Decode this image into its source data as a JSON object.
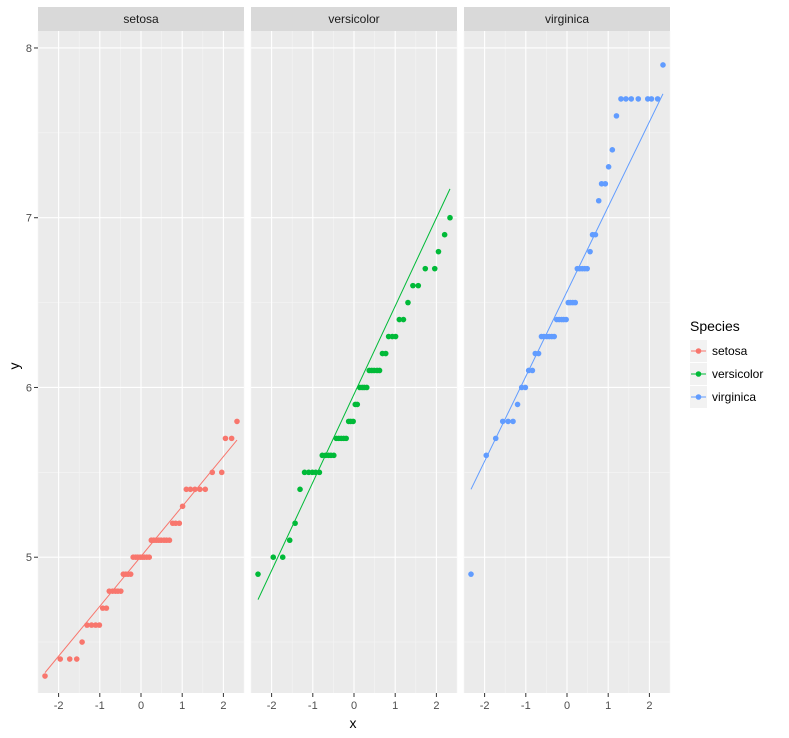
{
  "chart_data": {
    "type": "scatter",
    "facet_by": "Species",
    "xlabel": "x",
    "ylabel": "y",
    "xlim": [
      -2.5,
      2.5
    ],
    "ylim": [
      4.2,
      8.1
    ],
    "x_ticks": [
      "-2",
      "-1",
      "0",
      "1",
      "2"
    ],
    "y_ticks": [
      "5",
      "6",
      "7",
      "8"
    ],
    "x_tick_values": [
      -2,
      -1,
      0,
      1,
      2
    ],
    "y_tick_values": [
      5,
      6,
      7,
      8
    ],
    "grid": true,
    "legend": {
      "title": "Species",
      "placement": "right",
      "entries": [
        "setosa",
        "versicolor",
        "virginica"
      ]
    },
    "panels": [
      {
        "name": "setosa",
        "color": "#F8766D",
        "line": [
          [
            -2.33,
            4.32
          ],
          [
            2.33,
            5.69
          ]
        ],
        "points": [
          [
            -2.33,
            4.3
          ],
          [
            -1.96,
            4.4
          ],
          [
            -1.73,
            4.4
          ],
          [
            -1.56,
            4.4
          ],
          [
            -1.43,
            4.5
          ],
          [
            -1.31,
            4.6
          ],
          [
            -1.2,
            4.6
          ],
          [
            -1.1,
            4.6
          ],
          [
            -1.01,
            4.6
          ],
          [
            -0.93,
            4.7
          ],
          [
            -0.84,
            4.7
          ],
          [
            -0.77,
            4.8
          ],
          [
            -0.69,
            4.8
          ],
          [
            -0.62,
            4.8
          ],
          [
            -0.56,
            4.8
          ],
          [
            -0.49,
            4.8
          ],
          [
            -0.43,
            4.9
          ],
          [
            -0.37,
            4.9
          ],
          [
            -0.31,
            4.9
          ],
          [
            -0.25,
            4.9
          ],
          [
            -0.19,
            5.0
          ],
          [
            -0.13,
            5.0
          ],
          [
            -0.08,
            5.0
          ],
          [
            -0.02,
            5.0
          ],
          [
            0.03,
            5.0
          ],
          [
            0.08,
            5.0
          ],
          [
            0.14,
            5.0
          ],
          [
            0.2,
            5.0
          ],
          [
            0.25,
            5.1
          ],
          [
            0.31,
            5.1
          ],
          [
            0.37,
            5.1
          ],
          [
            0.43,
            5.1
          ],
          [
            0.49,
            5.1
          ],
          [
            0.56,
            5.1
          ],
          [
            0.62,
            5.1
          ],
          [
            0.69,
            5.1
          ],
          [
            0.77,
            5.2
          ],
          [
            0.84,
            5.2
          ],
          [
            0.93,
            5.2
          ],
          [
            1.01,
            5.3
          ],
          [
            1.1,
            5.4
          ],
          [
            1.2,
            5.4
          ],
          [
            1.31,
            5.4
          ],
          [
            1.43,
            5.4
          ],
          [
            1.56,
            5.4
          ],
          [
            1.73,
            5.5
          ],
          [
            1.96,
            5.5
          ],
          [
            2.05,
            5.7
          ],
          [
            2.2,
            5.7
          ],
          [
            2.33,
            5.8
          ]
        ]
      },
      {
        "name": "versicolor",
        "color": "#00BA38",
        "line": [
          [
            -2.33,
            4.75
          ],
          [
            2.33,
            7.17
          ]
        ],
        "points": [
          [
            -2.33,
            4.9
          ],
          [
            -1.96,
            5.0
          ],
          [
            -1.73,
            5.0
          ],
          [
            -1.56,
            5.1
          ],
          [
            -1.43,
            5.2
          ],
          [
            -1.31,
            5.4
          ],
          [
            -1.2,
            5.5
          ],
          [
            -1.1,
            5.5
          ],
          [
            -1.01,
            5.5
          ],
          [
            -0.93,
            5.5
          ],
          [
            -0.84,
            5.5
          ],
          [
            -0.77,
            5.6
          ],
          [
            -0.69,
            5.6
          ],
          [
            -0.62,
            5.6
          ],
          [
            -0.56,
            5.6
          ],
          [
            -0.49,
            5.6
          ],
          [
            -0.43,
            5.7
          ],
          [
            -0.37,
            5.7
          ],
          [
            -0.31,
            5.7
          ],
          [
            -0.25,
            5.7
          ],
          [
            -0.19,
            5.7
          ],
          [
            -0.13,
            5.8
          ],
          [
            -0.08,
            5.8
          ],
          [
            -0.02,
            5.8
          ],
          [
            0.03,
            5.9
          ],
          [
            0.08,
            5.9
          ],
          [
            0.14,
            6.0
          ],
          [
            0.2,
            6.0
          ],
          [
            0.25,
            6.0
          ],
          [
            0.31,
            6.0
          ],
          [
            0.37,
            6.1
          ],
          [
            0.43,
            6.1
          ],
          [
            0.49,
            6.1
          ],
          [
            0.56,
            6.1
          ],
          [
            0.62,
            6.1
          ],
          [
            0.69,
            6.2
          ],
          [
            0.77,
            6.2
          ],
          [
            0.84,
            6.3
          ],
          [
            0.93,
            6.3
          ],
          [
            1.01,
            6.3
          ],
          [
            1.1,
            6.4
          ],
          [
            1.2,
            6.4
          ],
          [
            1.31,
            6.5
          ],
          [
            1.43,
            6.6
          ],
          [
            1.56,
            6.6
          ],
          [
            1.73,
            6.7
          ],
          [
            1.96,
            6.7
          ],
          [
            2.05,
            6.8
          ],
          [
            2.2,
            6.9
          ],
          [
            2.33,
            7.0
          ]
        ]
      },
      {
        "name": "virginica",
        "color": "#619CFF",
        "line": [
          [
            -2.33,
            5.4
          ],
          [
            2.33,
            7.73
          ]
        ],
        "points": [
          [
            -2.33,
            4.9
          ],
          [
            -1.96,
            5.6
          ],
          [
            -1.73,
            5.7
          ],
          [
            -1.56,
            5.8
          ],
          [
            -1.43,
            5.8
          ],
          [
            -1.31,
            5.8
          ],
          [
            -1.2,
            5.9
          ],
          [
            -1.1,
            6.0
          ],
          [
            -1.01,
            6.0
          ],
          [
            -0.93,
            6.1
          ],
          [
            -0.84,
            6.1
          ],
          [
            -0.77,
            6.2
          ],
          [
            -0.69,
            6.2
          ],
          [
            -0.62,
            6.3
          ],
          [
            -0.56,
            6.3
          ],
          [
            -0.49,
            6.3
          ],
          [
            -0.43,
            6.3
          ],
          [
            -0.37,
            6.3
          ],
          [
            -0.31,
            6.3
          ],
          [
            -0.25,
            6.4
          ],
          [
            -0.19,
            6.4
          ],
          [
            -0.13,
            6.4
          ],
          [
            -0.08,
            6.4
          ],
          [
            -0.02,
            6.4
          ],
          [
            0.03,
            6.5
          ],
          [
            0.08,
            6.5
          ],
          [
            0.14,
            6.5
          ],
          [
            0.2,
            6.5
          ],
          [
            0.25,
            6.7
          ],
          [
            0.31,
            6.7
          ],
          [
            0.37,
            6.7
          ],
          [
            0.43,
            6.7
          ],
          [
            0.49,
            6.7
          ],
          [
            0.56,
            6.8
          ],
          [
            0.62,
            6.9
          ],
          [
            0.69,
            6.9
          ],
          [
            0.77,
            7.1
          ],
          [
            0.84,
            7.2
          ],
          [
            0.93,
            7.2
          ],
          [
            1.01,
            7.3
          ],
          [
            1.1,
            7.4
          ],
          [
            1.2,
            7.6
          ],
          [
            1.31,
            7.7
          ],
          [
            1.43,
            7.7
          ],
          [
            1.56,
            7.7
          ],
          [
            1.73,
            7.7
          ],
          [
            1.96,
            7.7
          ],
          [
            2.05,
            7.7
          ],
          [
            2.2,
            7.7
          ],
          [
            2.33,
            7.9
          ]
        ]
      }
    ]
  }
}
